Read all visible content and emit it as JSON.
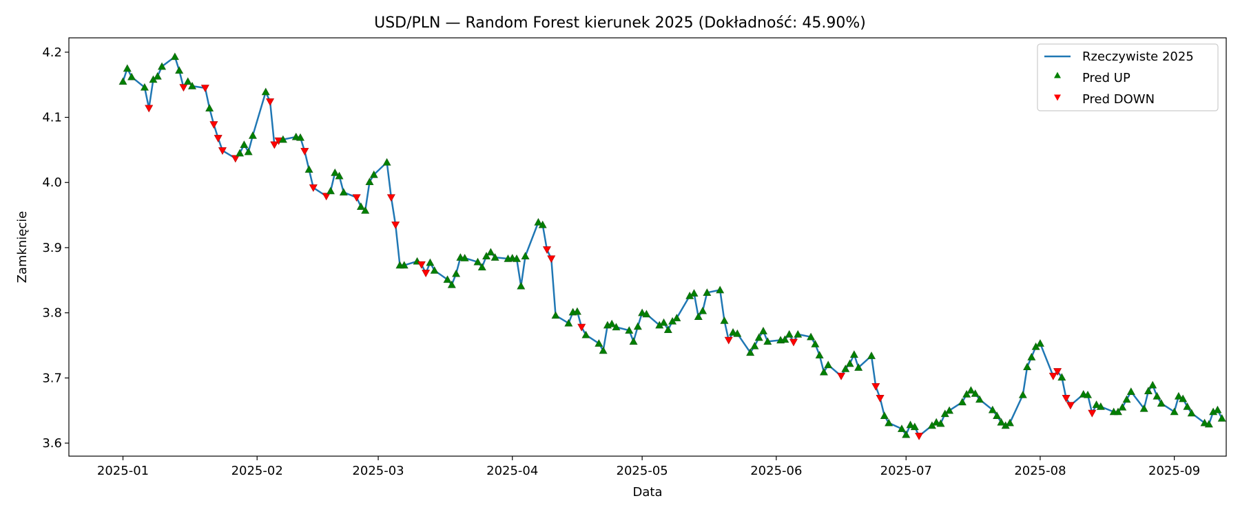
{
  "chart_data": {
    "type": "line",
    "title": "USD/PLN — Random Forest kierunek 2025 (Dokładność: 45.90%)",
    "xlabel": "Data",
    "ylabel": "Zamknięcie",
    "x_ticks": [
      {
        "label": "2025-01",
        "day": 0
      },
      {
        "label": "2025-02",
        "day": 31
      },
      {
        "label": "2025-03",
        "day": 59
      },
      {
        "label": "2025-04",
        "day": 90
      },
      {
        "label": "2025-05",
        "day": 120
      },
      {
        "label": "2025-06",
        "day": 151
      },
      {
        "label": "2025-07",
        "day": 181
      },
      {
        "label": "2025-08",
        "day": 212
      },
      {
        "label": "2025-09",
        "day": 243
      }
    ],
    "xlim": [
      -12.5,
      255
    ],
    "y_ticks": [
      3.6,
      3.7,
      3.8,
      3.9,
      4.0,
      4.1,
      4.2
    ],
    "y_tick_labels": [
      "3.6",
      "3.7",
      "3.8",
      "3.9",
      "4.0",
      "4.1",
      "4.2"
    ],
    "ylim": [
      3.58,
      4.222
    ],
    "legend": {
      "position": "top-right",
      "entries": [
        "Rzeczywiste 2025",
        "Pred UP",
        "Pred DOWN"
      ]
    },
    "colors": {
      "line": "#1f77b4",
      "up": "#008000",
      "down": "#ff0000"
    },
    "series": [
      {
        "name": "Rzeczywiste 2025",
        "points": [
          {
            "d": 0,
            "v": 4.155,
            "p": "up"
          },
          {
            "d": 1,
            "v": 4.175,
            "p": "up"
          },
          {
            "d": 2,
            "v": 4.162,
            "p": "up"
          },
          {
            "d": 5,
            "v": 4.146,
            "p": "up"
          },
          {
            "d": 6,
            "v": 4.114,
            "p": "down"
          },
          {
            "d": 7,
            "v": 4.158,
            "p": "up"
          },
          {
            "d": 8,
            "v": 4.163,
            "p": "up"
          },
          {
            "d": 9,
            "v": 4.178,
            "p": "up"
          },
          {
            "d": 12,
            "v": 4.193,
            "p": "up"
          },
          {
            "d": 13,
            "v": 4.172,
            "p": "up"
          },
          {
            "d": 14,
            "v": 4.146,
            "p": "down"
          },
          {
            "d": 15,
            "v": 4.155,
            "p": "up"
          },
          {
            "d": 16,
            "v": 4.148,
            "p": "up"
          },
          {
            "d": 19,
            "v": 4.145,
            "p": "down"
          },
          {
            "d": 20,
            "v": 4.114,
            "p": "up"
          },
          {
            "d": 21,
            "v": 4.089,
            "p": "down"
          },
          {
            "d": 22,
            "v": 4.068,
            "p": "down"
          },
          {
            "d": 23,
            "v": 4.049,
            "p": "down"
          },
          {
            "d": 26,
            "v": 4.037,
            "p": "down"
          },
          {
            "d": 27,
            "v": 4.045,
            "p": "up"
          },
          {
            "d": 28,
            "v": 4.058,
            "p": "up"
          },
          {
            "d": 29,
            "v": 4.047,
            "p": "up"
          },
          {
            "d": 30,
            "v": 4.072,
            "p": "up"
          },
          {
            "d": 33,
            "v": 4.139,
            "p": "up"
          },
          {
            "d": 34,
            "v": 4.124,
            "p": "down"
          },
          {
            "d": 35,
            "v": 4.058,
            "p": "down"
          },
          {
            "d": 36,
            "v": 4.064,
            "p": "down"
          },
          {
            "d": 37,
            "v": 4.066,
            "p": "up"
          },
          {
            "d": 40,
            "v": 4.07,
            "p": "up"
          },
          {
            "d": 41,
            "v": 4.069,
            "p": "up"
          },
          {
            "d": 42,
            "v": 4.048,
            "p": "down"
          },
          {
            "d": 43,
            "v": 4.02,
            "p": "up"
          },
          {
            "d": 44,
            "v": 3.992,
            "p": "down"
          },
          {
            "d": 47,
            "v": 3.979,
            "p": "down"
          },
          {
            "d": 48,
            "v": 3.987,
            "p": "up"
          },
          {
            "d": 49,
            "v": 4.015,
            "p": "up"
          },
          {
            "d": 50,
            "v": 4.01,
            "p": "up"
          },
          {
            "d": 51,
            "v": 3.985,
            "p": "up"
          },
          {
            "d": 54,
            "v": 3.977,
            "p": "down"
          },
          {
            "d": 55,
            "v": 3.963,
            "p": "up"
          },
          {
            "d": 56,
            "v": 3.957,
            "p": "up"
          },
          {
            "d": 57,
            "v": 4.001,
            "p": "up"
          },
          {
            "d": 58,
            "v": 4.012,
            "p": "up"
          },
          {
            "d": 61,
            "v": 4.031,
            "p": "up"
          },
          {
            "d": 62,
            "v": 3.977,
            "p": "down"
          },
          {
            "d": 63,
            "v": 3.935,
            "p": "down"
          },
          {
            "d": 64,
            "v": 3.873,
            "p": "up"
          },
          {
            "d": 65,
            "v": 3.873,
            "p": "up"
          },
          {
            "d": 68,
            "v": 3.879,
            "p": "up"
          },
          {
            "d": 69,
            "v": 3.874,
            "p": "down"
          },
          {
            "d": 70,
            "v": 3.861,
            "p": "down"
          },
          {
            "d": 71,
            "v": 3.877,
            "p": "up"
          },
          {
            "d": 72,
            "v": 3.865,
            "p": "up"
          },
          {
            "d": 75,
            "v": 3.851,
            "p": "up"
          },
          {
            "d": 76,
            "v": 3.843,
            "p": "up"
          },
          {
            "d": 77,
            "v": 3.86,
            "p": "up"
          },
          {
            "d": 78,
            "v": 3.885,
            "p": "up"
          },
          {
            "d": 79,
            "v": 3.884,
            "p": "up"
          },
          {
            "d": 82,
            "v": 3.878,
            "p": "up"
          },
          {
            "d": 83,
            "v": 3.87,
            "p": "up"
          },
          {
            "d": 84,
            "v": 3.887,
            "p": "up"
          },
          {
            "d": 85,
            "v": 3.893,
            "p": "up"
          },
          {
            "d": 86,
            "v": 3.885,
            "p": "up"
          },
          {
            "d": 89,
            "v": 3.883,
            "p": "up"
          },
          {
            "d": 90,
            "v": 3.884,
            "p": "up"
          },
          {
            "d": 91,
            "v": 3.883,
            "p": "up"
          },
          {
            "d": 92,
            "v": 3.841,
            "p": "up"
          },
          {
            "d": 93,
            "v": 3.887,
            "p": "up"
          },
          {
            "d": 96,
            "v": 3.939,
            "p": "up"
          },
          {
            "d": 97,
            "v": 3.935,
            "p": "up"
          },
          {
            "d": 98,
            "v": 3.897,
            "p": "down"
          },
          {
            "d": 99,
            "v": 3.883,
            "p": "down"
          },
          {
            "d": 100,
            "v": 3.796,
            "p": "up"
          },
          {
            "d": 103,
            "v": 3.784,
            "p": "up"
          },
          {
            "d": 104,
            "v": 3.801,
            "p": "up"
          },
          {
            "d": 105,
            "v": 3.802,
            "p": "up"
          },
          {
            "d": 106,
            "v": 3.778,
            "p": "down"
          },
          {
            "d": 107,
            "v": 3.766,
            "p": "up"
          },
          {
            "d": 110,
            "v": 3.753,
            "p": "up"
          },
          {
            "d": 111,
            "v": 3.742,
            "p": "up"
          },
          {
            "d": 112,
            "v": 3.781,
            "p": "up"
          },
          {
            "d": 113,
            "v": 3.783,
            "p": "up"
          },
          {
            "d": 114,
            "v": 3.778,
            "p": "up"
          },
          {
            "d": 117,
            "v": 3.773,
            "p": "up"
          },
          {
            "d": 118,
            "v": 3.756,
            "p": "up"
          },
          {
            "d": 119,
            "v": 3.779,
            "p": "up"
          },
          {
            "d": 120,
            "v": 3.8,
            "p": "up"
          },
          {
            "d": 121,
            "v": 3.798,
            "p": "up"
          },
          {
            "d": 124,
            "v": 3.781,
            "p": "up"
          },
          {
            "d": 125,
            "v": 3.785,
            "p": "up"
          },
          {
            "d": 126,
            "v": 3.774,
            "p": "up"
          },
          {
            "d": 127,
            "v": 3.787,
            "p": "up"
          },
          {
            "d": 128,
            "v": 3.792,
            "p": "up"
          },
          {
            "d": 131,
            "v": 3.826,
            "p": "up"
          },
          {
            "d": 132,
            "v": 3.83,
            "p": "up"
          },
          {
            "d": 133,
            "v": 3.794,
            "p": "up"
          },
          {
            "d": 134,
            "v": 3.803,
            "p": "up"
          },
          {
            "d": 135,
            "v": 3.831,
            "p": "up"
          },
          {
            "d": 138,
            "v": 3.835,
            "p": "up"
          },
          {
            "d": 139,
            "v": 3.788,
            "p": "up"
          },
          {
            "d": 140,
            "v": 3.758,
            "p": "down"
          },
          {
            "d": 141,
            "v": 3.77,
            "p": "up"
          },
          {
            "d": 142,
            "v": 3.768,
            "p": "up"
          },
          {
            "d": 145,
            "v": 3.739,
            "p": "up"
          },
          {
            "d": 146,
            "v": 3.749,
            "p": "up"
          },
          {
            "d": 147,
            "v": 3.762,
            "p": "up"
          },
          {
            "d": 148,
            "v": 3.772,
            "p": "up"
          },
          {
            "d": 149,
            "v": 3.756,
            "p": "up"
          },
          {
            "d": 152,
            "v": 3.758,
            "p": "up"
          },
          {
            "d": 153,
            "v": 3.759,
            "p": "up"
          },
          {
            "d": 154,
            "v": 3.767,
            "p": "up"
          },
          {
            "d": 155,
            "v": 3.755,
            "p": "down"
          },
          {
            "d": 156,
            "v": 3.767,
            "p": "up"
          },
          {
            "d": 159,
            "v": 3.763,
            "p": "up"
          },
          {
            "d": 160,
            "v": 3.752,
            "p": "up"
          },
          {
            "d": 161,
            "v": 3.735,
            "p": "up"
          },
          {
            "d": 162,
            "v": 3.709,
            "p": "up"
          },
          {
            "d": 163,
            "v": 3.72,
            "p": "up"
          },
          {
            "d": 166,
            "v": 3.703,
            "p": "down"
          },
          {
            "d": 167,
            "v": 3.714,
            "p": "up"
          },
          {
            "d": 168,
            "v": 3.722,
            "p": "up"
          },
          {
            "d": 169,
            "v": 3.736,
            "p": "up"
          },
          {
            "d": 170,
            "v": 3.716,
            "p": "up"
          },
          {
            "d": 173,
            "v": 3.734,
            "p": "up"
          },
          {
            "d": 174,
            "v": 3.687,
            "p": "down"
          },
          {
            "d": 175,
            "v": 3.669,
            "p": "down"
          },
          {
            "d": 176,
            "v": 3.642,
            "p": "up"
          },
          {
            "d": 177,
            "v": 3.631,
            "p": "up"
          },
          {
            "d": 180,
            "v": 3.622,
            "p": "up"
          },
          {
            "d": 181,
            "v": 3.613,
            "p": "up"
          },
          {
            "d": 182,
            "v": 3.628,
            "p": "up"
          },
          {
            "d": 183,
            "v": 3.625,
            "p": "up"
          },
          {
            "d": 184,
            "v": 3.611,
            "p": "down"
          },
          {
            "d": 187,
            "v": 3.627,
            "p": "up"
          },
          {
            "d": 188,
            "v": 3.632,
            "p": "up"
          },
          {
            "d": 189,
            "v": 3.63,
            "p": "up"
          },
          {
            "d": 190,
            "v": 3.645,
            "p": "up"
          },
          {
            "d": 191,
            "v": 3.65,
            "p": "up"
          },
          {
            "d": 194,
            "v": 3.663,
            "p": "up"
          },
          {
            "d": 195,
            "v": 3.675,
            "p": "up"
          },
          {
            "d": 196,
            "v": 3.681,
            "p": "up"
          },
          {
            "d": 197,
            "v": 3.676,
            "p": "up"
          },
          {
            "d": 198,
            "v": 3.667,
            "p": "up"
          },
          {
            "d": 201,
            "v": 3.651,
            "p": "up"
          },
          {
            "d": 202,
            "v": 3.642,
            "p": "up"
          },
          {
            "d": 203,
            "v": 3.632,
            "p": "up"
          },
          {
            "d": 204,
            "v": 3.627,
            "p": "up"
          },
          {
            "d": 205,
            "v": 3.631,
            "p": "up"
          },
          {
            "d": 208,
            "v": 3.674,
            "p": "up"
          },
          {
            "d": 209,
            "v": 3.717,
            "p": "up"
          },
          {
            "d": 210,
            "v": 3.732,
            "p": "up"
          },
          {
            "d": 211,
            "v": 3.748,
            "p": "up"
          },
          {
            "d": 212,
            "v": 3.753,
            "p": "up"
          },
          {
            "d": 215,
            "v": 3.703,
            "p": "down"
          },
          {
            "d": 216,
            "v": 3.71,
            "p": "down"
          },
          {
            "d": 217,
            "v": 3.701,
            "p": "up"
          },
          {
            "d": 218,
            "v": 3.669,
            "p": "down"
          },
          {
            "d": 219,
            "v": 3.658,
            "p": "down"
          },
          {
            "d": 222,
            "v": 3.675,
            "p": "up"
          },
          {
            "d": 223,
            "v": 3.674,
            "p": "up"
          },
          {
            "d": 224,
            "v": 3.646,
            "p": "down"
          },
          {
            "d": 225,
            "v": 3.659,
            "p": "up"
          },
          {
            "d": 226,
            "v": 3.656,
            "p": "up"
          },
          {
            "d": 229,
            "v": 3.648,
            "p": "up"
          },
          {
            "d": 230,
            "v": 3.648,
            "p": "up"
          },
          {
            "d": 231,
            "v": 3.655,
            "p": "up"
          },
          {
            "d": 232,
            "v": 3.667,
            "p": "up"
          },
          {
            "d": 233,
            "v": 3.679,
            "p": "up"
          },
          {
            "d": 236,
            "v": 3.653,
            "p": "up"
          },
          {
            "d": 237,
            "v": 3.68,
            "p": "up"
          },
          {
            "d": 238,
            "v": 3.689,
            "p": "up"
          },
          {
            "d": 239,
            "v": 3.672,
            "p": "up"
          },
          {
            "d": 240,
            "v": 3.661,
            "p": "up"
          },
          {
            "d": 243,
            "v": 3.648,
            "p": "up"
          },
          {
            "d": 244,
            "v": 3.672,
            "p": "up"
          },
          {
            "d": 245,
            "v": 3.668,
            "p": "up"
          },
          {
            "d": 246,
            "v": 3.656,
            "p": "up"
          },
          {
            "d": 247,
            "v": 3.646,
            "p": "up"
          },
          {
            "d": 250,
            "v": 3.631,
            "p": "up"
          },
          {
            "d": 251,
            "v": 3.629,
            "p": "up"
          },
          {
            "d": 252,
            "v": 3.648,
            "p": "up"
          },
          {
            "d": 253,
            "v": 3.651,
            "p": "up"
          },
          {
            "d": 254,
            "v": 3.638,
            "p": "up"
          }
        ]
      }
    ]
  }
}
